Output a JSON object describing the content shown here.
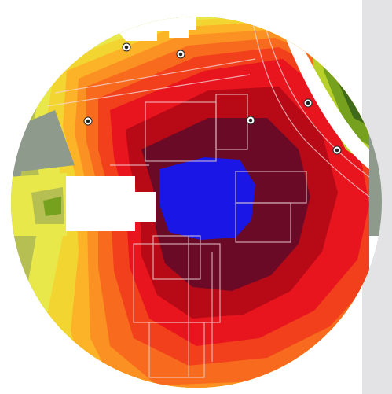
{
  "map": {
    "type": "contour-heatmap",
    "view": "circular-inset",
    "colors": {
      "panel": "#e3e3e5",
      "core": "#1a16e6",
      "inner_ring": "#6a0a26",
      "ring_dark_red": "#b80a16",
      "ring_red": "#e8141e",
      "ring_red_orange": "#f2401c",
      "ring_orange": "#f86b1e",
      "ring_light_orange": "#fb9122",
      "ring_amber": "#fcb328",
      "ring_yellow": "#f3d531",
      "ring_pale_yellow": "#e9e84a",
      "ring_olive": "#b6bf52",
      "ring_grey": "#8e9a8c",
      "green_area_dark": "#3e6a1a",
      "green_area_mid": "#76a11e",
      "green_area_light": "#b8d12a",
      "footprint_lines": "#f4d9d9",
      "building_fill": "#ffffff"
    },
    "markers": [
      {
        "name": "marker-1"
      },
      {
        "name": "marker-2"
      },
      {
        "name": "marker-3"
      },
      {
        "name": "marker-4"
      },
      {
        "name": "marker-5"
      },
      {
        "name": "marker-6"
      }
    ]
  }
}
